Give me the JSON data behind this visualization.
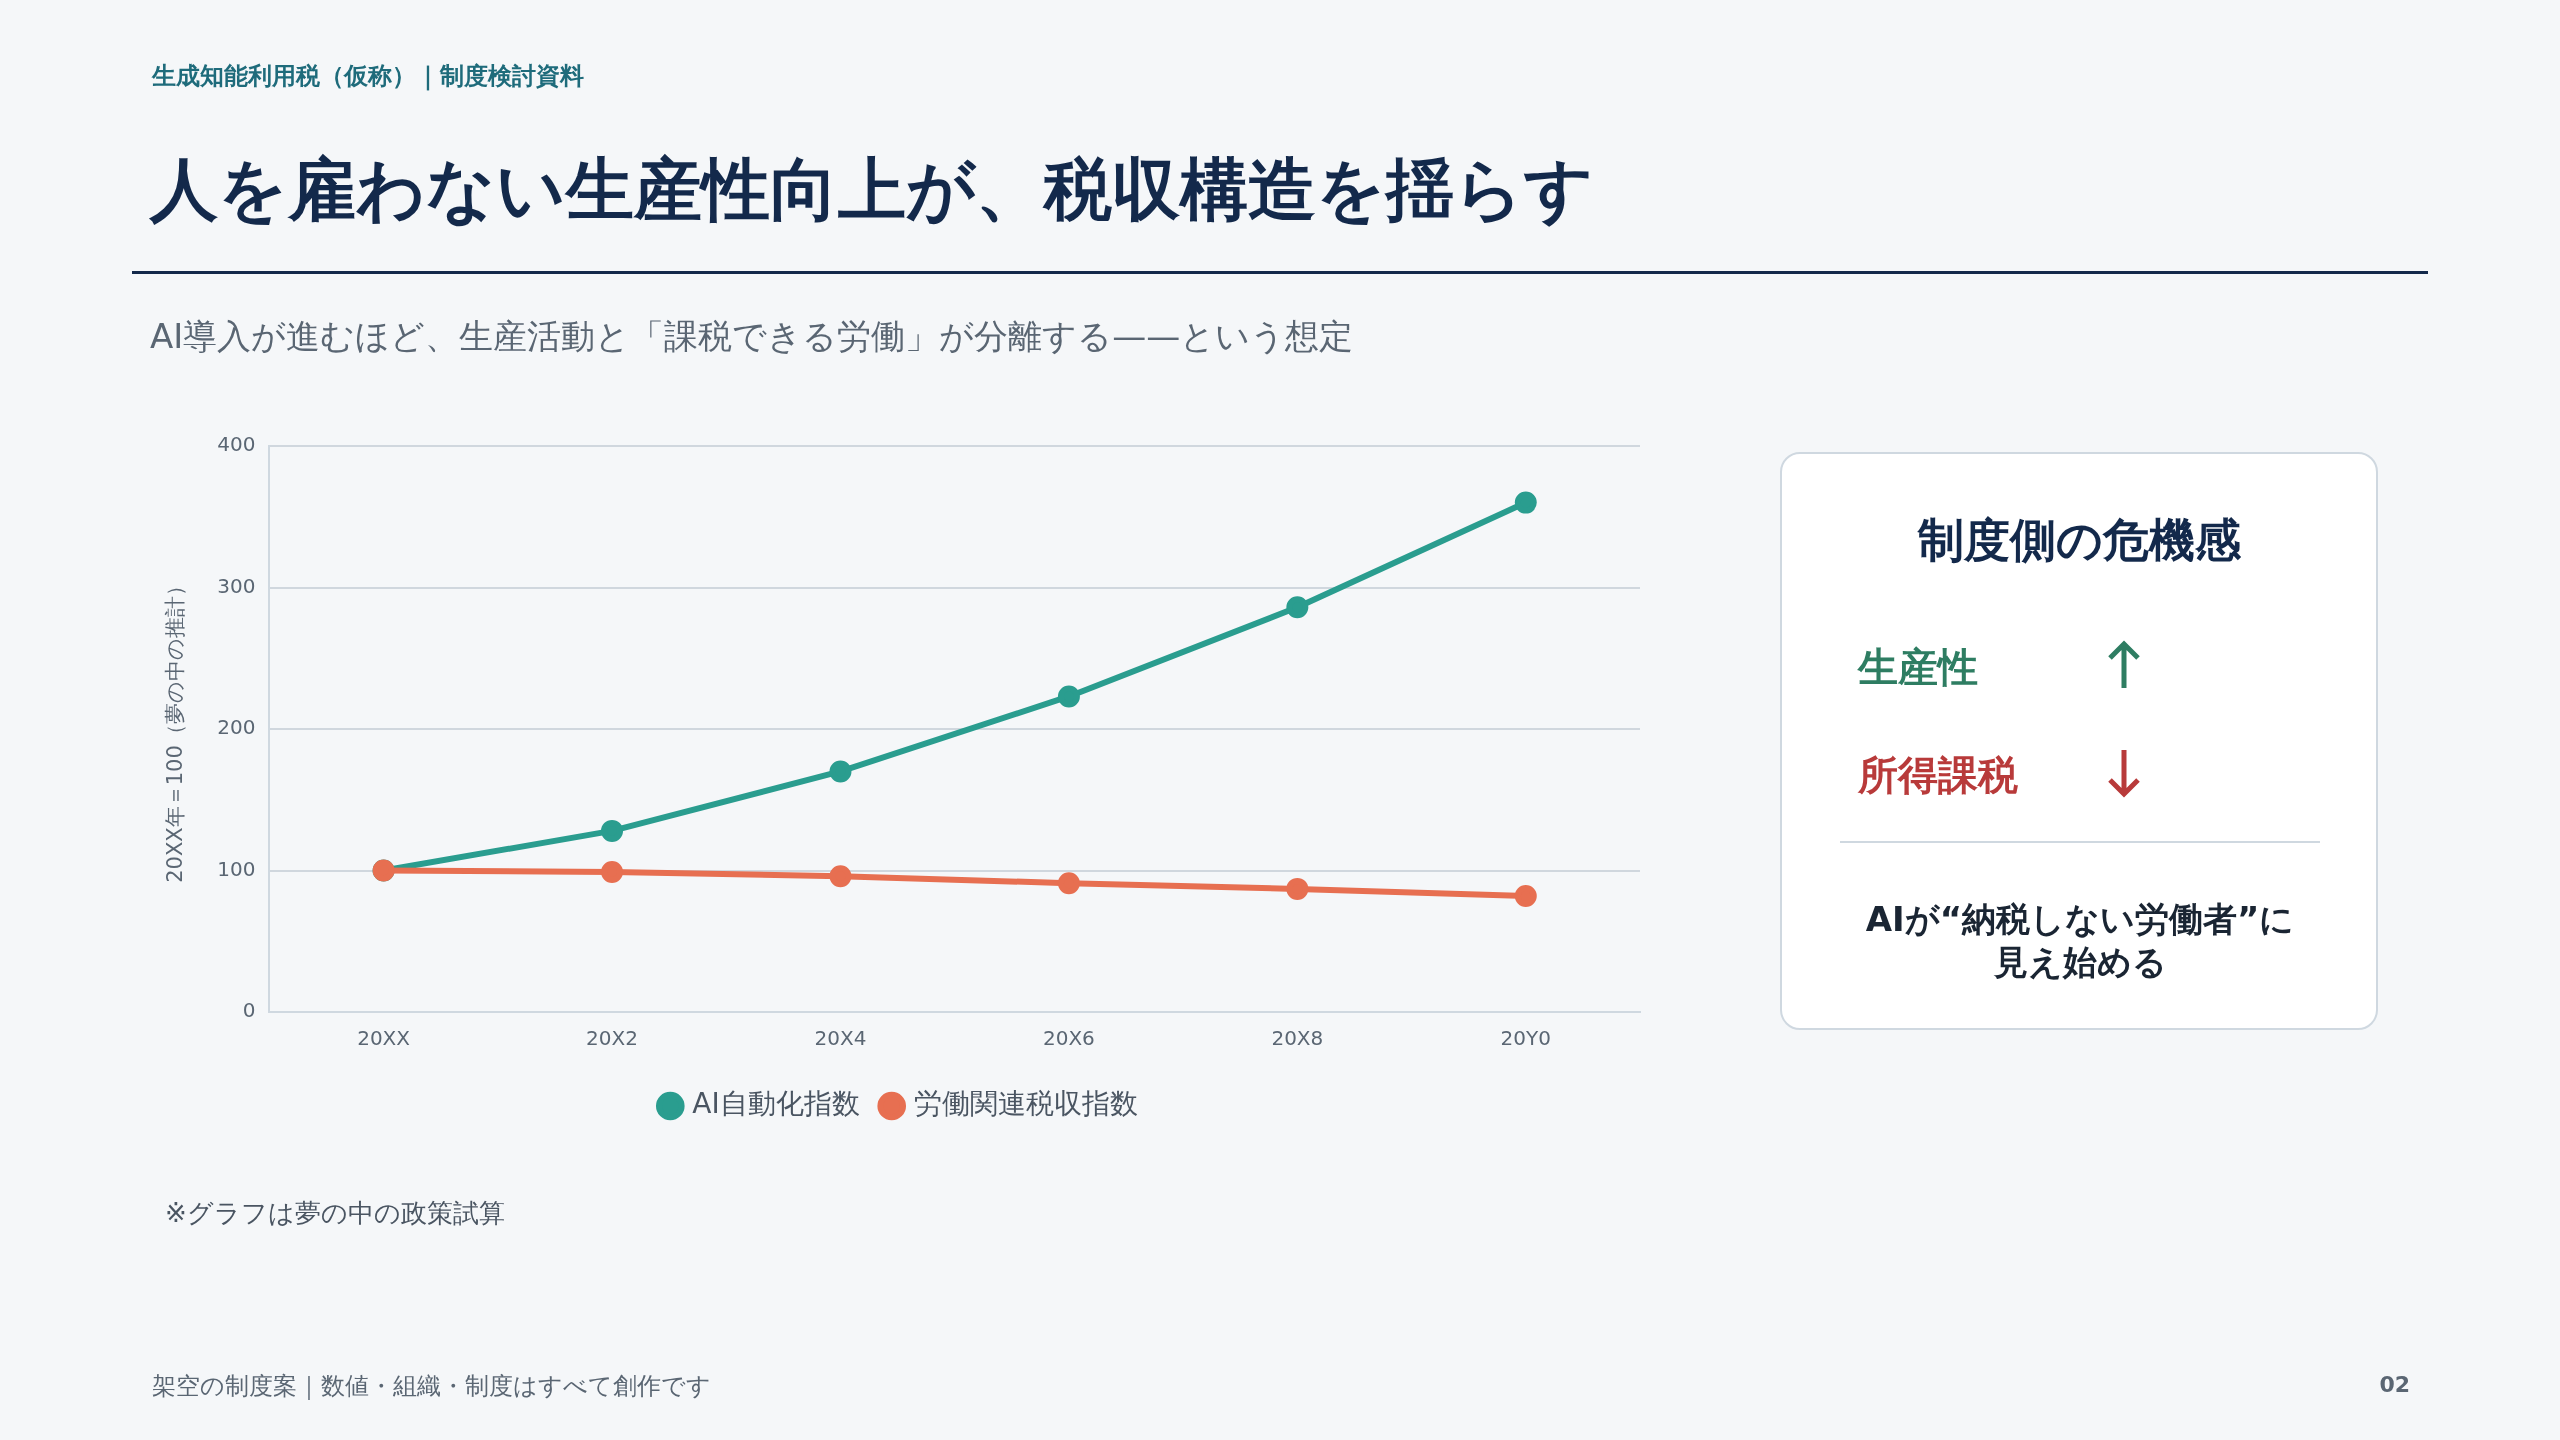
{
  "chart_data": {
    "type": "line",
    "title": "人を雇わない生産性向上が、税収構造を揺らす",
    "subtitle": "AI導入が進むほど、生産活動と「課税できる労働」が分離する——という想定",
    "ylabel": "20XX年＝100（夢の中の推計）",
    "categories": [
      "20XX",
      "20X2",
      "20X4",
      "20X6",
      "20X8",
      "20Y0"
    ],
    "series": [
      {
        "name": "AI自動化指数",
        "color": "#2a9d8f",
        "values": [
          100,
          128,
          170,
          223,
          286,
          360
        ]
      },
      {
        "name": "労働関連税収指数",
        "color": "#e76f51",
        "values": [
          100,
          99,
          96,
          91,
          87,
          82
        ]
      }
    ],
    "ylim": [
      0,
      400
    ],
    "yticks": [
      0,
      100,
      200,
      300,
      400
    ],
    "grid": "y",
    "legend": "bottom",
    "marker": "circle",
    "line_style": "solid",
    "annotations": [
      "生成知能利用税（仮称）｜制度検討資料",
      "※グラフは夢の中の政策試算",
      "架空の制度案｜数値・組織・制度はすべて創作です",
      "02",
      "制度側の危機感",
      "生産性",
      "所得課税",
      "AIが“納税しない労働者”に見え始める"
    ]
  }
}
